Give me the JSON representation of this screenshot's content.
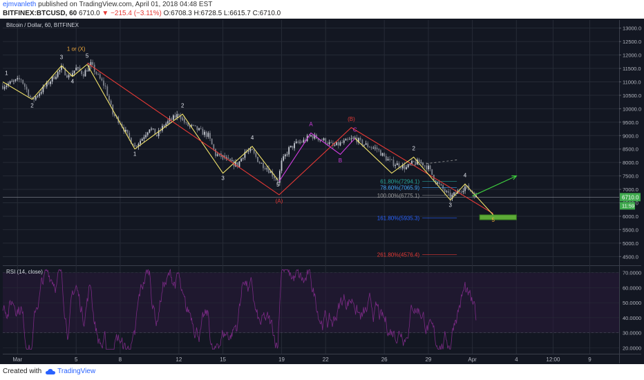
{
  "header": {
    "author": "ejmvanleth",
    "published": "published on TradingView.com, April 01, 2018 04:48 EST",
    "symbol": "BITFINEX:BTCUSD, 60",
    "last": "6710.0",
    "change": "▼ −215.4 (−3.11%)",
    "open": "O:6708.3",
    "high": "H:6728.5",
    "low": "L:6615.7",
    "close": "C:6710.0"
  },
  "footer": {
    "created_with": "Created with",
    "brand": "TradingView"
  },
  "colors": {
    "background": "#131722",
    "grid": "#262b36",
    "bull": "#c0c4cc",
    "wave_yellow": "#f2e36b",
    "wave_red": "#e53935",
    "wave_magenta": "#d13de0",
    "rsi": "#7b2a85",
    "price_tag": "#3fa94d",
    "target_box": "#66bb3a",
    "arrow": "#3fcf3f"
  },
  "chart_data": [
    {
      "type": "candlestick",
      "title": "Bitcoin / Dollar, 60, BITFINEX",
      "y_ticks": [
        "13000.0",
        "12500.0",
        "12000.0",
        "11500.0",
        "11000.0",
        "10500.0",
        "10000.0",
        "9500.0",
        "9000.0",
        "8500.0",
        "8000.0",
        "7500.0",
        "7000.0",
        "6500.0",
        "6000.0",
        "5500.0",
        "5000.0",
        "4500.0"
      ],
      "ylim": [
        4200,
        13300
      ],
      "x_ticks": [
        {
          "label": "Mar",
          "date": "2018-03-01"
        },
        {
          "label": "5",
          "date": "2018-03-05"
        },
        {
          "label": "8",
          "date": "2018-03-08"
        },
        {
          "label": "12",
          "date": "2018-03-12"
        },
        {
          "label": "15",
          "date": "2018-03-15"
        },
        {
          "label": "19",
          "date": "2018-03-19"
        },
        {
          "label": "22",
          "date": "2018-03-22"
        },
        {
          "label": "26",
          "date": "2018-03-26"
        },
        {
          "label": "29",
          "date": "2018-03-29"
        },
        {
          "label": "Apr",
          "date": "2018-04-01"
        },
        {
          "label": "4",
          "date": "2018-04-04"
        },
        {
          "label": "12:00",
          "date": "2018-04-06T12:00"
        },
        {
          "label": "9",
          "date": "2018-04-09"
        }
      ],
      "xlim": [
        "2018-02-28",
        "2018-04-11"
      ],
      "last_price": {
        "label": "6710.0",
        "value": 6710,
        "countdown": "11:59"
      },
      "price_path": [
        [
          "2018-02-28",
          10850
        ],
        [
          "2018-03-01T06:00",
          11100
        ],
        [
          "2018-03-02",
          10300
        ],
        [
          "2018-03-02T12:00",
          10600
        ],
        [
          "2018-03-04",
          11500
        ],
        [
          "2018-03-04T12:00",
          11200
        ],
        [
          "2018-03-05",
          11500
        ],
        [
          "2018-03-05T12:00",
          11300
        ],
        [
          "2018-03-06",
          11650
        ],
        [
          "2018-03-06T12:00",
          11200
        ],
        [
          "2018-03-07",
          10800
        ],
        [
          "2018-03-07T12:00",
          9800
        ],
        [
          "2018-03-08",
          9500
        ],
        [
          "2018-03-08T12:00",
          9000
        ],
        [
          "2018-03-09",
          8600
        ],
        [
          "2018-03-09T12:00",
          8900
        ],
        [
          "2018-03-10",
          9300
        ],
        [
          "2018-03-10T12:00",
          9000
        ],
        [
          "2018-03-11",
          9400
        ],
        [
          "2018-03-11T12:00",
          9600
        ],
        [
          "2018-03-12",
          9800
        ],
        [
          "2018-03-12T12:00",
          9400
        ],
        [
          "2018-03-13",
          9300
        ],
        [
          "2018-03-14",
          9000
        ],
        [
          "2018-03-14T12:00",
          8300
        ],
        [
          "2018-03-15",
          8200
        ],
        [
          "2018-03-15T12:00",
          8000
        ],
        [
          "2018-03-16",
          7900
        ],
        [
          "2018-03-16T12:00",
          8400
        ],
        [
          "2018-03-17",
          8400
        ],
        [
          "2018-03-17T12:00",
          8000
        ],
        [
          "2018-03-18",
          7800
        ],
        [
          "2018-03-18T18:00",
          7300
        ],
        [
          "2018-03-19",
          8000
        ],
        [
          "2018-03-19T12:00",
          8500
        ],
        [
          "2018-03-20",
          8700
        ],
        [
          "2018-03-20T12:00",
          8800
        ],
        [
          "2018-03-21",
          9000
        ],
        [
          "2018-03-21T12:00",
          8900
        ],
        [
          "2018-03-22",
          8800
        ],
        [
          "2018-03-22T12:00",
          8600
        ],
        [
          "2018-03-23",
          8700
        ],
        [
          "2018-03-23T12:00",
          8800
        ],
        [
          "2018-03-24",
          8900
        ],
        [
          "2018-03-24T12:00",
          8700
        ],
        [
          "2018-03-25",
          8600
        ],
        [
          "2018-03-25T12:00",
          8500
        ],
        [
          "2018-03-26",
          8200
        ],
        [
          "2018-03-26T12:00",
          8000
        ],
        [
          "2018-03-27",
          7900
        ],
        [
          "2018-03-27T12:00",
          7800
        ],
        [
          "2018-03-28",
          8000
        ],
        [
          "2018-03-28T12:00",
          8000
        ],
        [
          "2018-03-29",
          7800
        ],
        [
          "2018-03-29T12:00",
          7300
        ],
        [
          "2018-03-30",
          7000
        ],
        [
          "2018-03-30T12:00",
          6700
        ],
        [
          "2018-03-31",
          6900
        ],
        [
          "2018-03-31T12:00",
          7100
        ],
        [
          "2018-04-01",
          6900
        ],
        [
          "2018-04-01T06:00",
          6710
        ]
      ],
      "waves": [
        {
          "color": "yellow",
          "points": [
            [
              "2018-02-28",
              11000
            ],
            [
              "2018-03-02",
              10350
            ],
            [
              "2018-03-04",
              11600
            ],
            [
              "2018-03-04T18:00",
              11200
            ],
            [
              "2018-03-05T18:00",
              11650
            ],
            [
              "2018-03-09",
              8500
            ],
            [
              "2018-03-12T06:00",
              9800
            ],
            [
              "2018-03-15",
              7600
            ],
            [
              "2018-03-17",
              8600
            ],
            [
              "2018-03-18T18:00",
              7350
            ]
          ]
        },
        {
          "color": "red",
          "points": [
            [
              "2018-03-05T18:00",
              11700
            ],
            [
              "2018-03-18T20:00",
              6800
            ],
            [
              "2018-03-23T18:00",
              9300
            ],
            [
              "2018-04-02T10:00",
              6100
            ]
          ]
        },
        {
          "color": "magenta",
          "points": [
            [
              "2018-03-18T20:00",
              7300
            ],
            [
              "2018-03-21",
              9100
            ],
            [
              "2018-03-23",
              8300
            ],
            [
              "2018-03-24",
              8900
            ]
          ]
        },
        {
          "color": "yellow",
          "points": [
            [
              "2018-03-24",
              8900
            ],
            [
              "2018-03-26T12:00",
              7600
            ],
            [
              "2018-03-28",
              8200
            ],
            [
              "2018-03-30T12:00",
              6600
            ],
            [
              "2018-03-31T12:00",
              7200
            ],
            [
              "2018-04-02T10:00",
              6050
            ]
          ]
        }
      ],
      "annotations": [
        {
          "text": "1",
          "x": "2018-02-28T06:00",
          "y": 11250,
          "color": "white"
        },
        {
          "text": "2",
          "x": "2018-03-02",
          "y": 10050,
          "color": "white"
        },
        {
          "text": "3",
          "x": "2018-03-04",
          "y": 11850,
          "color": "white"
        },
        {
          "text": "4",
          "x": "2018-03-04T18:00",
          "y": 10950,
          "color": "white"
        },
        {
          "text": "5",
          "x": "2018-03-05T18:00",
          "y": 11900,
          "color": "white"
        },
        {
          "text": "1 or (X)",
          "x": "2018-03-05",
          "y": 12150,
          "color": "orange"
        },
        {
          "text": "1",
          "x": "2018-03-09",
          "y": 8250,
          "color": "white"
        },
        {
          "text": "2",
          "x": "2018-03-12T06:00",
          "y": 10050,
          "color": "white"
        },
        {
          "text": "3",
          "x": "2018-03-15",
          "y": 7350,
          "color": "white"
        },
        {
          "text": "4",
          "x": "2018-03-17",
          "y": 8850,
          "color": "white"
        },
        {
          "text": "5",
          "x": "2018-03-18T18:00",
          "y": 7100,
          "color": "white"
        },
        {
          "text": "(A)",
          "x": "2018-03-18T20:00",
          "y": 6500,
          "color": "red"
        },
        {
          "text": "A",
          "x": "2018-03-21",
          "y": 9350,
          "color": "magenta"
        },
        {
          "text": "B",
          "x": "2018-03-23",
          "y": 8000,
          "color": "magenta"
        },
        {
          "text": "C",
          "x": "2018-03-24",
          "y": 9150,
          "color": "magenta"
        },
        {
          "text": "(B)",
          "x": "2018-03-23T18:00",
          "y": 9550,
          "color": "red"
        },
        {
          "text": "2",
          "x": "2018-03-28",
          "y": 8450,
          "color": "white"
        },
        {
          "text": "3",
          "x": "2018-03-30T12:00",
          "y": 6350,
          "color": "white"
        },
        {
          "text": "4",
          "x": "2018-03-31T12:00",
          "y": 7450,
          "color": "white"
        },
        {
          "text": "5",
          "x": "2018-04-02T10:00",
          "y": 5800,
          "color": "orange"
        }
      ],
      "fib_levels": [
        {
          "label": "61.80%(7294.1)",
          "value": 7294.1,
          "color": "#26a69a"
        },
        {
          "label": "78.60%(7065.9)",
          "value": 7065.9,
          "color": "#42a5f5"
        },
        {
          "label": "100.00%(6775.1)",
          "value": 6775.1,
          "color": "#9e9e9e"
        },
        {
          "label": "161.80%(5935.3)",
          "value": 5935.3,
          "color": "#2962ff"
        },
        {
          "label": "261.80%(4576.4)",
          "value": 4576.4,
          "color": "#e53935"
        }
      ],
      "target_box": {
        "x_start": "2018-04-01T12:00",
        "x_end": "2018-04-04",
        "y_low": 5870,
        "y_high": 6050
      },
      "arrow": {
        "from": [
          "2018-04-01",
          6750
        ],
        "to": [
          "2018-04-04",
          7500
        ]
      },
      "dashed_projection": {
        "from": [
          "2018-03-28",
          7900
        ],
        "to": [
          "2018-03-31",
          8100
        ]
      }
    },
    {
      "type": "line",
      "title": "RSI (14, close)",
      "y_ticks": [
        "70.0000",
        "60.0000",
        "50.0000",
        "40.0000",
        "30.0000",
        "20.0000"
      ],
      "ylim": [
        16,
        74
      ],
      "band": [
        30,
        70
      ]
    }
  ]
}
